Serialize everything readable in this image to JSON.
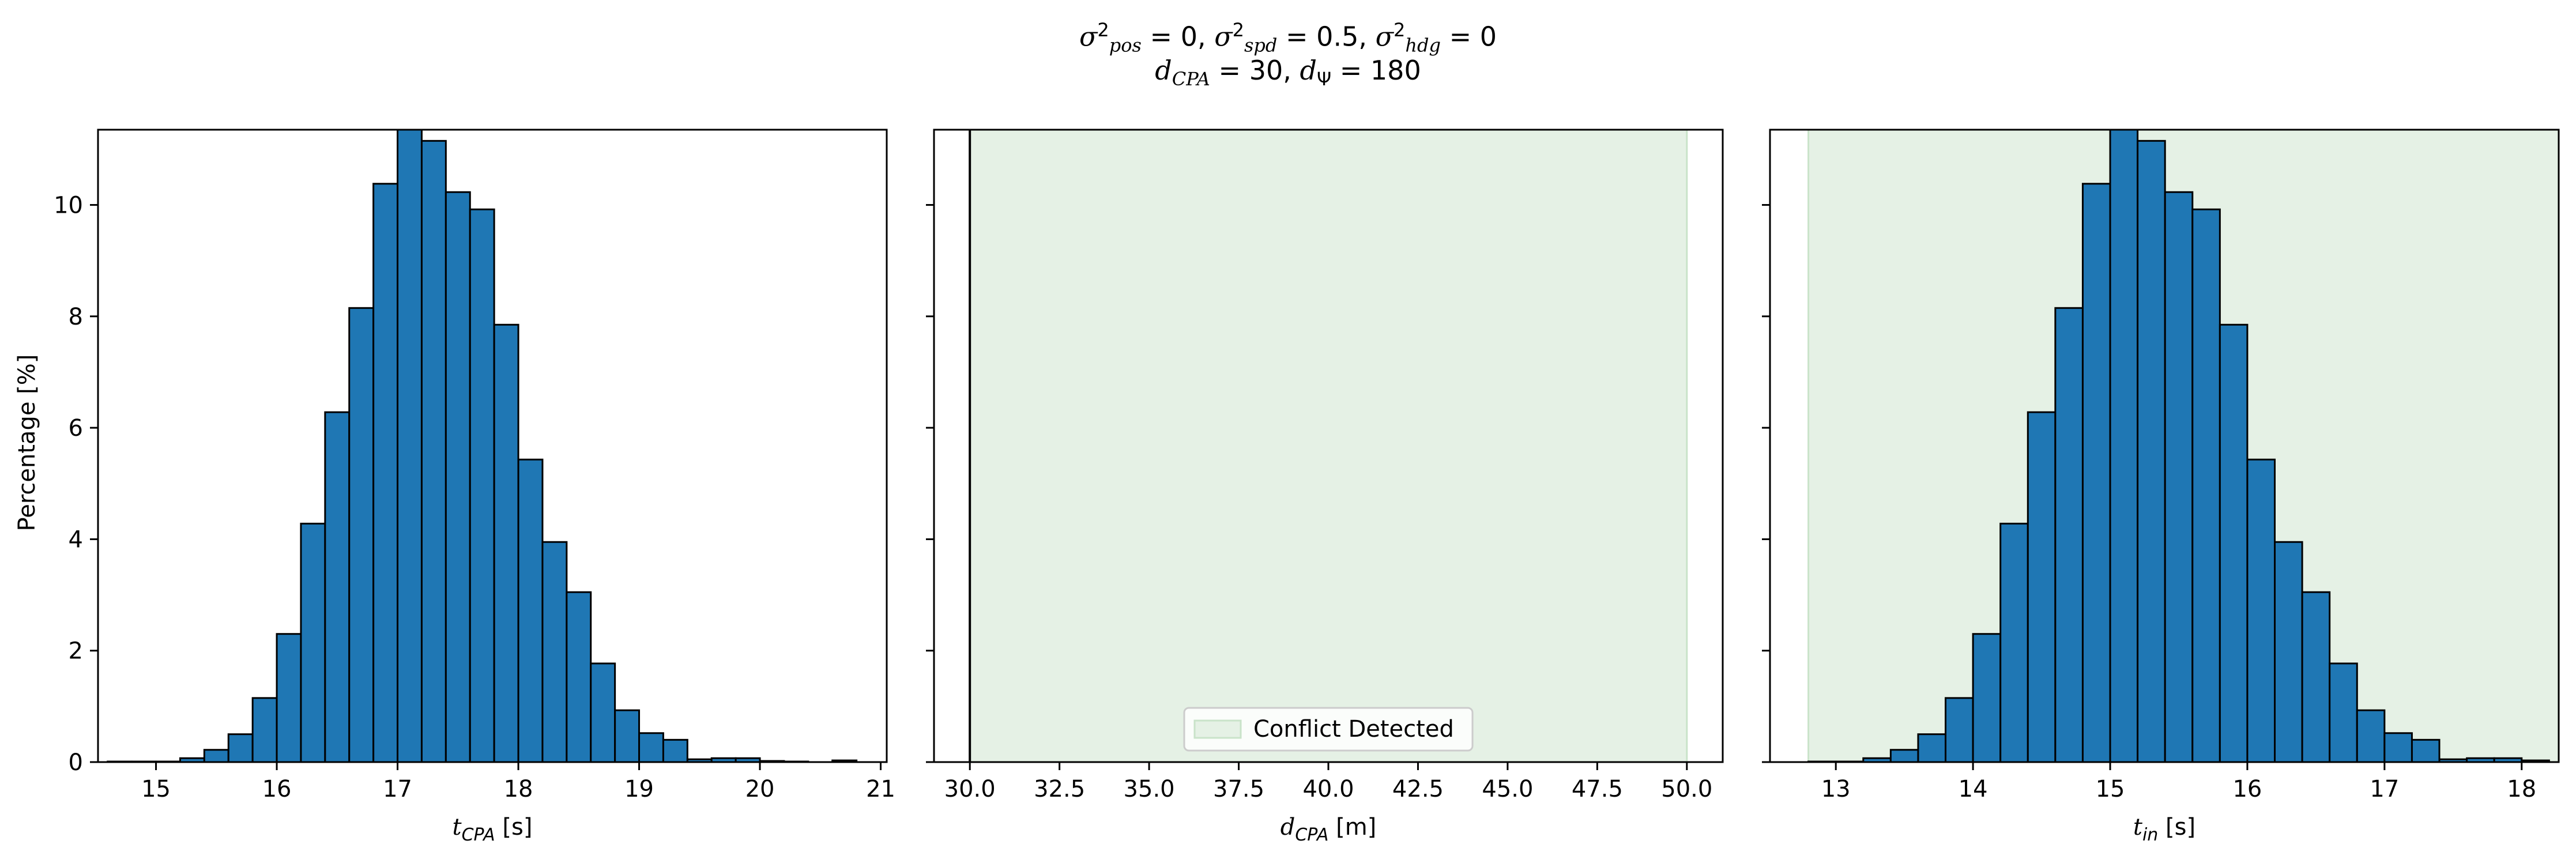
{
  "figure": {
    "title_line1": "σ²pos = 0, σ²spd = 0.5, σ²hdg = 0",
    "title_line2": "dCPA = 30, dΨ = 180",
    "title_parts": {
      "l1_a_sub": "pos",
      "l1_a_val": "= 0,",
      "l1_b_sub": "spd",
      "l1_b_val": "= 0.5,",
      "l1_c_sub": "hdg",
      "l1_c_val": "= 0",
      "l2_a_sub": "CPA",
      "l2_a_val": "= 30,",
      "l2_b_sub": "Ψ",
      "l2_b_val": "= 180"
    },
    "shared_ylabel": "Percentage [%]"
  },
  "colors": {
    "bar_fill": "#1f77b4",
    "bar_edge": "#000000",
    "conflict_fill": "#e5f1e5",
    "conflict_edge": "#c9e3c9"
  },
  "chart_data": [
    {
      "type": "bar",
      "subplot": "left",
      "xlabel_main": "t",
      "xlabel_sub": "CPA",
      "xlabel_unit": " [s]",
      "xlim": [
        14.52,
        21.05
      ],
      "ylim": [
        0,
        11.35
      ],
      "xticks": [
        15,
        16,
        17,
        18,
        19,
        20,
        21
      ],
      "yticks": [
        0,
        2,
        4,
        6,
        8,
        10
      ],
      "bin_width": 0.2,
      "bins": [
        {
          "x": 14.7,
          "y": 0.01
        },
        {
          "x": 14.9,
          "y": 0.01
        },
        {
          "x": 15.1,
          "y": 0.01
        },
        {
          "x": 15.3,
          "y": 0.07
        },
        {
          "x": 15.5,
          "y": 0.22
        },
        {
          "x": 15.7,
          "y": 0.5
        },
        {
          "x": 15.9,
          "y": 1.15
        },
        {
          "x": 16.1,
          "y": 2.3
        },
        {
          "x": 16.3,
          "y": 4.28
        },
        {
          "x": 16.5,
          "y": 6.28
        },
        {
          "x": 16.7,
          "y": 8.15
        },
        {
          "x": 16.9,
          "y": 10.38
        },
        {
          "x": 17.1,
          "y": 11.4
        },
        {
          "x": 17.3,
          "y": 11.15
        },
        {
          "x": 17.5,
          "y": 10.23
        },
        {
          "x": 17.7,
          "y": 9.92
        },
        {
          "x": 17.9,
          "y": 7.85
        },
        {
          "x": 18.1,
          "y": 5.43
        },
        {
          "x": 18.3,
          "y": 3.95
        },
        {
          "x": 18.5,
          "y": 3.05
        },
        {
          "x": 18.7,
          "y": 1.77
        },
        {
          "x": 18.9,
          "y": 0.93
        },
        {
          "x": 19.1,
          "y": 0.52
        },
        {
          "x": 19.3,
          "y": 0.4
        },
        {
          "x": 19.5,
          "y": 0.05
        },
        {
          "x": 19.7,
          "y": 0.07
        },
        {
          "x": 19.9,
          "y": 0.07
        },
        {
          "x": 20.1,
          "y": 0.02
        },
        {
          "x": 20.3,
          "y": 0.01
        },
        {
          "x": 20.7,
          "y": 0.03
        }
      ]
    },
    {
      "type": "area",
      "subplot": "middle",
      "xlabel_main": "d",
      "xlabel_sub": "CPA",
      "xlabel_unit": " [m]",
      "xlim": [
        29.0,
        51.0
      ],
      "ylim": [
        0,
        11.35
      ],
      "xticks": [
        30.0,
        32.5,
        35.0,
        37.5,
        40.0,
        42.5,
        45.0,
        47.5,
        50.0
      ],
      "xtick_labels": [
        "30.0",
        "32.5",
        "35.0",
        "37.5",
        "40.0",
        "42.5",
        "45.0",
        "47.5",
        "50.0"
      ],
      "yticks": [
        0,
        2,
        4,
        6,
        8,
        10
      ],
      "conflict_region": [
        30.0,
        50.0
      ],
      "vertical_line_x": 30.0,
      "legend": {
        "label": "Conflict Detected",
        "placement": "bottom-center"
      }
    },
    {
      "type": "bar",
      "subplot": "right",
      "xlabel_main": "t",
      "xlabel_sub": "in",
      "xlabel_unit": " [s]",
      "xlim": [
        12.52,
        18.27
      ],
      "ylim": [
        0,
        11.35
      ],
      "xticks": [
        13,
        14,
        15,
        16,
        17,
        18
      ],
      "yticks": [
        0,
        2,
        4,
        6,
        8,
        10
      ],
      "conflict_region": [
        12.8,
        18.27
      ],
      "bin_width": 0.2,
      "bins": [
        {
          "x": 12.9,
          "y": 0.01
        },
        {
          "x": 13.1,
          "y": 0.01
        },
        {
          "x": 13.3,
          "y": 0.07
        },
        {
          "x": 13.5,
          "y": 0.22
        },
        {
          "x": 13.7,
          "y": 0.5
        },
        {
          "x": 13.9,
          "y": 1.15
        },
        {
          "x": 14.1,
          "y": 2.3
        },
        {
          "x": 14.3,
          "y": 4.28
        },
        {
          "x": 14.5,
          "y": 6.28
        },
        {
          "x": 14.7,
          "y": 8.15
        },
        {
          "x": 14.9,
          "y": 10.38
        },
        {
          "x": 15.1,
          "y": 11.4
        },
        {
          "x": 15.3,
          "y": 11.15
        },
        {
          "x": 15.5,
          "y": 10.23
        },
        {
          "x": 15.7,
          "y": 9.92
        },
        {
          "x": 15.9,
          "y": 7.85
        },
        {
          "x": 16.1,
          "y": 5.43
        },
        {
          "x": 16.3,
          "y": 3.95
        },
        {
          "x": 16.5,
          "y": 3.05
        },
        {
          "x": 16.7,
          "y": 1.77
        },
        {
          "x": 16.9,
          "y": 0.93
        },
        {
          "x": 17.1,
          "y": 0.52
        },
        {
          "x": 17.3,
          "y": 0.4
        },
        {
          "x": 17.5,
          "y": 0.05
        },
        {
          "x": 17.7,
          "y": 0.07
        },
        {
          "x": 17.9,
          "y": 0.07
        },
        {
          "x": 18.1,
          "y": 0.03
        }
      ]
    }
  ]
}
